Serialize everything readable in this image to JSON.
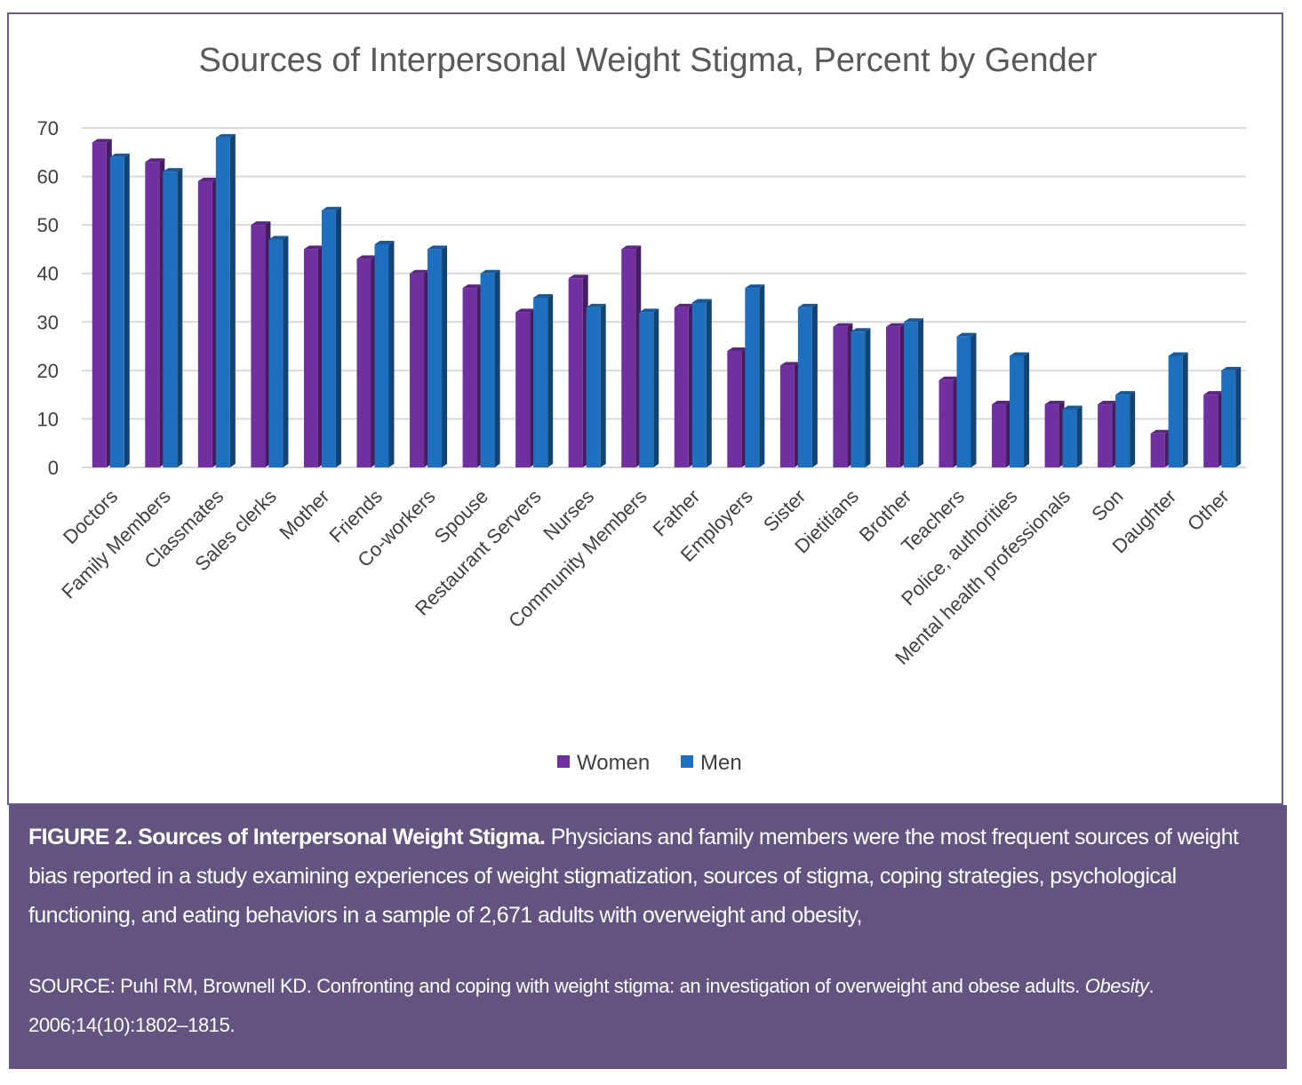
{
  "chart_data": {
    "type": "bar",
    "title": "Sources of Interpersonal Weight Stigma, Percent by Gender",
    "categories": [
      "Doctors",
      "Family Members",
      "Classmates",
      "Sales clerks",
      "Mother",
      "Friends",
      "Co-workers",
      "Spouse",
      "Restaurant Servers",
      "Nurses",
      "Community Members",
      "Father",
      "Employers",
      "Sister",
      "Dietitians",
      "Brother",
      "Teachers",
      "Police, authorities",
      "Mental health professionals",
      "Son",
      "Daughter",
      "Other"
    ],
    "series": [
      {
        "name": "Women",
        "color": "#7030a0",
        "values": [
          67,
          63,
          59,
          50,
          45,
          43,
          40,
          37,
          32,
          39,
          45,
          33,
          24,
          21,
          29,
          29,
          18,
          13,
          13,
          13,
          7,
          15
        ]
      },
      {
        "name": "Men",
        "color": "#1f6fbf",
        "values": [
          64,
          61,
          68,
          47,
          53,
          46,
          45,
          40,
          35,
          33,
          32,
          34,
          37,
          33,
          28,
          30,
          27,
          23,
          12,
          15,
          23,
          20
        ]
      }
    ],
    "yticks": [
      0,
      10,
      20,
      30,
      40,
      50,
      60,
      70
    ],
    "ylim": [
      0,
      70
    ],
    "grid": true,
    "legend_position": "bottom"
  },
  "caption": {
    "heading": "FIGURE 2. Sources of Interpersonal Weight Stigma.",
    "body": "Physicians and family members were the most frequent sources of weight bias reported in a study examining experiences of weight stigmatization, sources of stigma, coping strategies, psychological functioning, and eating behaviors in a sample of 2,671 adults with overweight and obesity,",
    "source_prefix": "SOURCE: Puhl RM, Brownell KD. Confronting and coping with weight stigma: an investigation of overweight and obese adults.",
    "source_journal": "Obesity",
    "source_suffix": ". 2006;14(10):1802–1815."
  }
}
